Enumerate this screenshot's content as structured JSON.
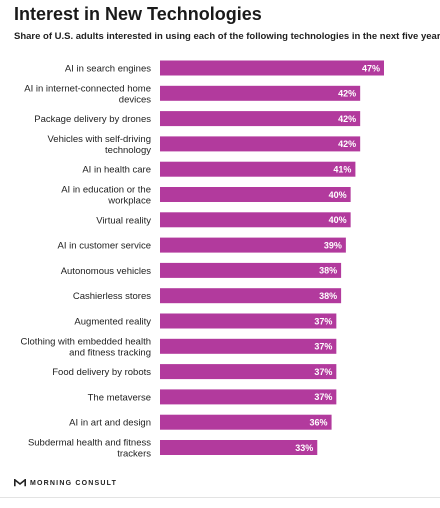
{
  "header": {
    "title": "Interest in New Technologies",
    "subtitle": "Share of U.S. adults interested in using each of the following technologies in the next five years:"
  },
  "footer": {
    "source": "MORNING CONSULT"
  },
  "colors": {
    "bar": "#b23a9d",
    "label_text": "#ffffff",
    "category_text": "#222222"
  },
  "chart_data": {
    "type": "bar",
    "orientation": "horizontal",
    "categories": [
      "AI in search engines",
      "AI in internet-connected home devices",
      "Package delivery by drones",
      "Vehicles with self-driving technology",
      "AI in health care",
      "AI in education or the workplace",
      "Virtual reality",
      "AI in customer service",
      "Autonomous vehicles",
      "Cashierless stores",
      "Augmented reality",
      "Clothing with embedded health and fitness tracking",
      "Food delivery by robots",
      "The metaverse",
      "AI in art and design",
      "Subdermal health and fitness trackers"
    ],
    "category_lines": [
      [
        "AI in search engines"
      ],
      [
        "AI in internet-connected home",
        "devices"
      ],
      [
        "Package delivery by drones"
      ],
      [
        "Vehicles with self-driving",
        "technology"
      ],
      [
        "AI in health care"
      ],
      [
        "AI in education or the",
        "workplace"
      ],
      [
        "Virtual reality"
      ],
      [
        "AI in customer service"
      ],
      [
        "Autonomous vehicles"
      ],
      [
        "Cashierless stores"
      ],
      [
        "Augmented reality"
      ],
      [
        "Clothing with embedded health",
        "and fitness tracking"
      ],
      [
        "Food delivery by robots"
      ],
      [
        "The metaverse"
      ],
      [
        "AI in art and design"
      ],
      [
        "Subdermal health and fitness",
        "trackers"
      ]
    ],
    "values": [
      47,
      42,
      42,
      42,
      41,
      40,
      40,
      39,
      38,
      38,
      37,
      37,
      37,
      37,
      36,
      33
    ],
    "value_labels": [
      "47%",
      "42%",
      "42%",
      "42%",
      "41%",
      "40%",
      "40%",
      "39%",
      "38%",
      "38%",
      "37%",
      "37%",
      "37%",
      "37%",
      "36%",
      "33%"
    ],
    "xlim": [
      0,
      47
    ],
    "grid": false,
    "legend": "none"
  }
}
